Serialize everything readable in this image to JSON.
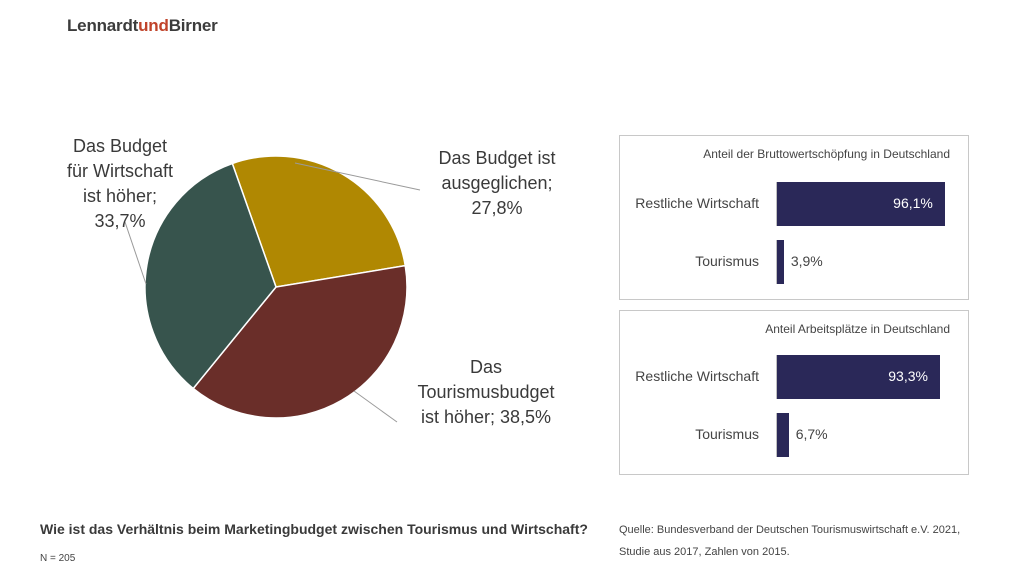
{
  "brand": {
    "part1": "Lennardt",
    "part2": "und",
    "part3": "Birner"
  },
  "pie_label_lines": {
    "wirtschaft": [
      "Das Budget",
      "für Wirtschaft",
      "ist höher;",
      "33,7%"
    ],
    "ausgeglichen": [
      "Das Budget ist",
      "ausgeglichen;",
      "27,8%"
    ],
    "tourismus": [
      "Das",
      "Tourismusbudget",
      "ist höher; 38,5%"
    ]
  },
  "colors": {
    "ausgeglichen": "#b08802",
    "tourismus": "#6a2e29",
    "wirtschaft": "#37544d",
    "bar": "#2a2858"
  },
  "chart_data": [
    {
      "type": "pie",
      "title": "",
      "slices": [
        {
          "label": "Das Budget ist ausgeglichen",
          "value": 27.8
        },
        {
          "label": "Das Tourismusbudget ist höher",
          "value": 38.5
        },
        {
          "label": "Das Budget für Wirtschaft ist höher",
          "value": 33.7
        }
      ]
    },
    {
      "type": "bar",
      "orientation": "horizontal",
      "title": "Anteil der Bruttowertschöpfung in Deutschland",
      "categories": [
        "Restliche Wirtschaft",
        "Tourismus"
      ],
      "values": [
        96.1,
        3.9
      ],
      "value_labels": [
        "96,1%",
        "3,9%"
      ],
      "xlim": [
        0,
        100
      ]
    },
    {
      "type": "bar",
      "orientation": "horizontal",
      "title": "Anteil Arbeitsplätze in Deutschland",
      "categories": [
        "Restliche Wirtschaft",
        "Tourismus"
      ],
      "values": [
        93.3,
        6.7
      ],
      "value_labels": [
        "93,3%",
        "6,7%"
      ],
      "xlim": [
        0,
        100
      ]
    }
  ],
  "question": "Wie ist das Verhältnis beim Marketingbudget zwischen Tourismus und Wirtschaft?",
  "sample": "N = 205",
  "source_lines": [
    "Quelle: Bundesverband der Deutschen Tourismuswirtschaft e.V. 2021,",
    "Studie aus 2017, Zahlen von 2015."
  ]
}
